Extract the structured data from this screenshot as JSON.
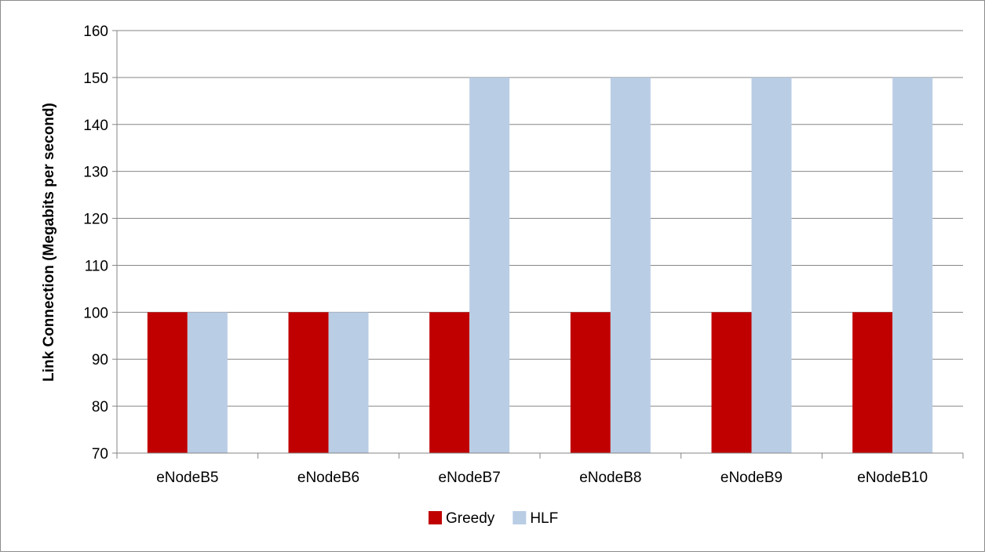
{
  "chart_data": {
    "type": "bar",
    "title": "",
    "xlabel": "",
    "ylabel": "Link Connection (Megabits per second)",
    "categories": [
      "eNodeB5",
      "eNodeB6",
      "eNodeB7",
      "eNodeB8",
      "eNodeB9",
      "eNodeB10"
    ],
    "series": [
      {
        "name": "Greedy",
        "color": "#c00000",
        "values": [
          100,
          100,
          100,
          100,
          100,
          100
        ]
      },
      {
        "name": "HLF",
        "color": "#b9cde5",
        "values": [
          100,
          100,
          150,
          150,
          150,
          150
        ]
      }
    ],
    "ylim": [
      70,
      160
    ],
    "yticks": [
      70,
      80,
      90,
      100,
      110,
      120,
      130,
      140,
      150,
      160
    ],
    "grid": true,
    "legend_position": "bottom"
  }
}
